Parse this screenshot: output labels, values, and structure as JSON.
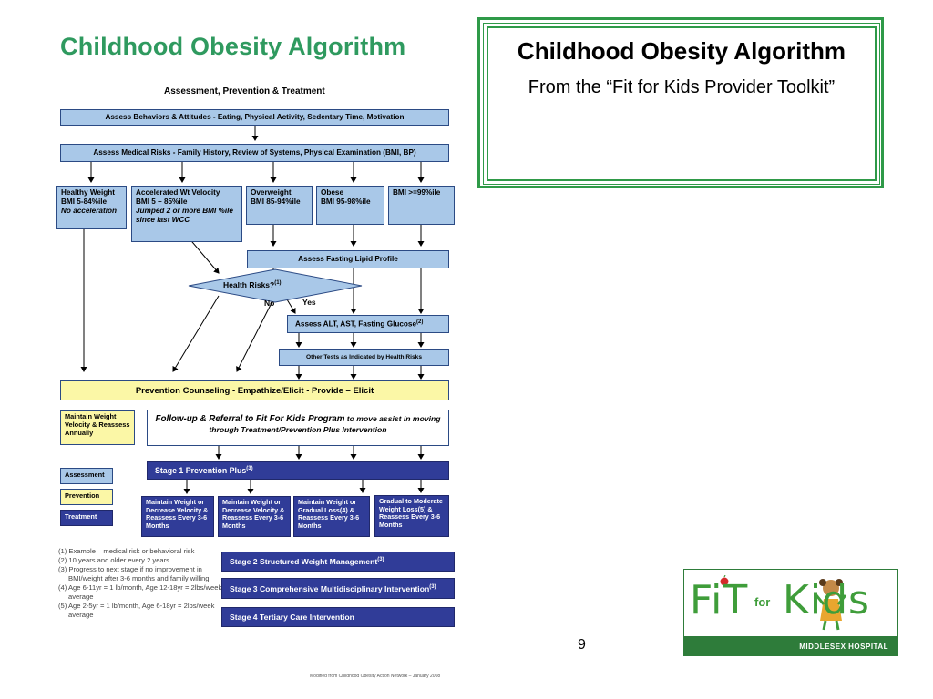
{
  "slide": {
    "main_title": "Childhood Obesity Algorithm",
    "title_box": {
      "title": "Childhood Obesity Algorithm",
      "subtitle": "From the “Fit for Kids Provider Toolkit”"
    },
    "page_number": "9"
  },
  "diagram": {
    "title": "Childhood Obesity Algorithm",
    "subtitle": "Assessment, Prevention & Treatment",
    "assess_behaviors": "Assess Behaviors & Attitudes - Eating, Physical Activity, Sedentary Time, Motivation",
    "assess_medical": "Assess Medical Risks - Family History, Review of Systems, Physical Examination (BMI, BP)",
    "categories": [
      {
        "line1": "Healthy Weight",
        "line2": "BMI 5-84%ile",
        "line3": "No acceleration"
      },
      {
        "line1": "Accelerated Wt Velocity",
        "line2": "BMI 5 – 85%ile",
        "line3": "Jumped 2 or more BMI %ile since last WCC"
      },
      {
        "line1": "Overweight",
        "line2": "BMI 85-94%ile"
      },
      {
        "line1": "Obese",
        "line2": "BMI 95-98%ile"
      },
      {
        "line1": "BMI >=99%ile"
      }
    ],
    "fasting_lipid": "Assess Fasting Lipid Profile",
    "health_risks": "Health Risks?",
    "health_risks_sup": "(1)",
    "no_label": "No",
    "yes_label": "Yes",
    "alt_ast": "Assess ALT, AST, Fasting Glucose",
    "alt_ast_sup": "(2)",
    "other_tests": "Other Tests as Indicated by Health Risks",
    "prevention_counseling": "Prevention Counseling - Empathize/Elicit - Provide – Elicit",
    "maintain_weight": "Maintain Weight Velocity & Reassess Annually",
    "followup_em": "Follow-up & Referral to Fit For Kids Program",
    "followup_rest": " to move assist in moving through Treatment/Prevention Plus Intervention",
    "stage1": "Stage 1 Prevention Plus",
    "stage1_sup": "(3)",
    "stage1_boxes": [
      "Maintain Weight or Decrease Velocity & Reassess Every 3-6 Months",
      "Maintain Weight or Decrease Velocity & Reassess Every 3-6 Months",
      "Maintain Weight or Gradual Loss(4) & Reassess Every 3-6 Months",
      "Gradual to Moderate Weight Loss(5) & Reassess Every 3-6 Months"
    ],
    "legend": [
      "Assessment",
      "Prevention",
      "Treatment"
    ],
    "stage2": "Stage 2 Structured Weight Management",
    "stage2_sup": "(3)",
    "stage3": "Stage 3 Comprehensive Multidisciplinary Intervention",
    "stage3_sup": "(3)",
    "stage4": "Stage 4 Tertiary Care Intervention",
    "footnotes": [
      "(1) Example – medical risk or behavioral risk",
      "(2) 10 years and older every 2 years",
      "(3) Progress to next stage if no improvement in BMI/weight after 3-6 months and family willing",
      "(4) Age 6-11yr = 1 lb/month, Age 12-18yr = 2lbs/week average",
      "(5) Age 2-5yr = 1 lb/month, Age 6-18yr = 2lbs/week average"
    ],
    "credit": "Modified from Childhood Obesity Action Network – January 2008"
  },
  "logo": {
    "text": "FiT",
    "for": "for",
    "text2": "Kids",
    "hospital": "MIDDLESEX HOSPITAL"
  },
  "colors": {
    "title_green": "#2f9a5f",
    "assessment_blue": "#a9c8e8",
    "prevention_yellow": "#fbf7a6",
    "treatment_navy": "#303c98"
  }
}
